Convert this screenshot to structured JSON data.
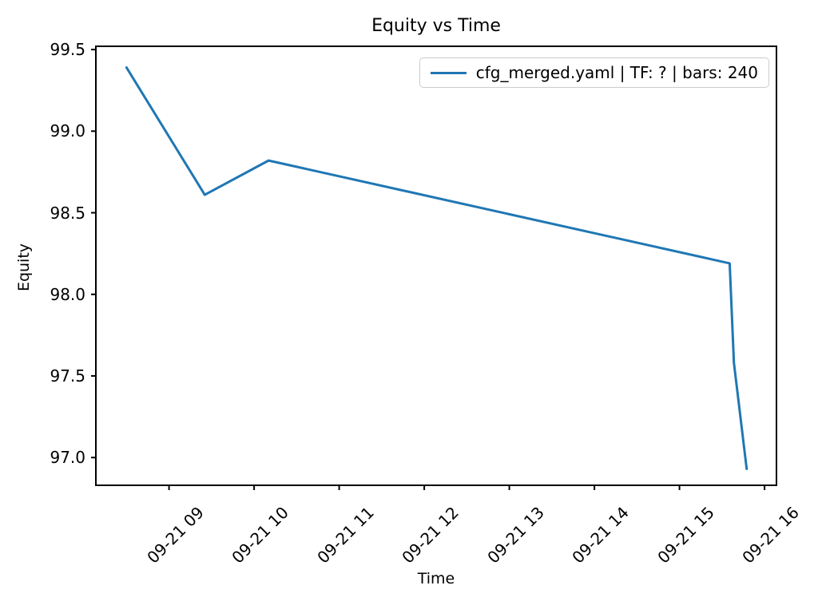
{
  "chart_data": {
    "type": "line",
    "title": "Equity vs Time",
    "xlabel": "Time",
    "ylabel": "Equity",
    "grid": false,
    "legend_position": "upper right",
    "x_unit_note": "hour of day, date 09-21 (from x tick labels)",
    "xlim": [
      8.14,
      16.14
    ],
    "ylim": [
      96.83,
      99.52
    ],
    "x_ticks": {
      "values": [
        9,
        10,
        11,
        12,
        13,
        14,
        15,
        16
      ],
      "labels": [
        "09-21 09",
        "09-21 10",
        "09-21 11",
        "09-21 12",
        "09-21 13",
        "09-21 14",
        "09-21 15",
        "09-21 16"
      ]
    },
    "y_ticks": {
      "values": [
        99.5,
        99.0,
        98.5,
        98.0,
        97.5,
        97.0
      ],
      "labels": [
        "99.5",
        "99.0",
        "98.5",
        "98.0",
        "97.5",
        "97.0"
      ]
    },
    "series": [
      {
        "name": "cfg_merged.yaml | TF: ? | bars: 240",
        "color": "#1f77b4",
        "x_hours": [
          8.5,
          9.42,
          10.17,
          15.59,
          15.64,
          15.79
        ],
        "y_equity": [
          99.39,
          98.61,
          98.82,
          98.19,
          97.58,
          96.93
        ]
      }
    ]
  },
  "colors": {
    "axes": "#000000",
    "text": "#000000",
    "legend_border": "#cccccc",
    "background": "#ffffff"
  }
}
